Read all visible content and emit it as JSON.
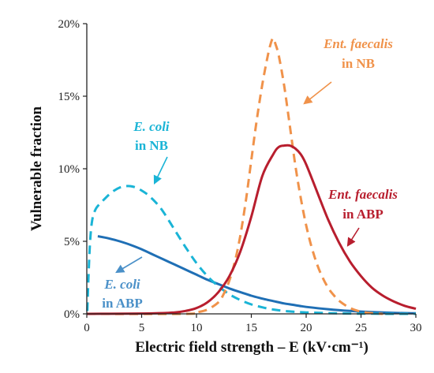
{
  "chart_data": {
    "type": "line",
    "xlabel": "Electric field strength – E (kV·cm⁻¹)",
    "ylabel": "Vulnerable fraction",
    "xlim": [
      0,
      30
    ],
    "ylim": [
      0,
      20
    ],
    "x_ticks": [
      "0",
      "5",
      "10",
      "15",
      "20",
      "25",
      "30"
    ],
    "y_ticks": [
      "0%",
      "5%",
      "10%",
      "15%",
      "20%"
    ],
    "grid": false,
    "legend": "none",
    "series": [
      {
        "key": "ecoli_abp",
        "style": "solid",
        "color": "#1f6fb5",
        "x": [
          1,
          2,
          3,
          4,
          5,
          6,
          7,
          8,
          9,
          10,
          11,
          12,
          13,
          14,
          15,
          16,
          17,
          18,
          19,
          20,
          22,
          24,
          26,
          28,
          30
        ],
        "y": [
          5.35,
          5.2,
          5.0,
          4.75,
          4.45,
          4.1,
          3.75,
          3.4,
          3.05,
          2.7,
          2.35,
          2.05,
          1.75,
          1.5,
          1.25,
          1.05,
          0.88,
          0.72,
          0.6,
          0.48,
          0.32,
          0.2,
          0.12,
          0.07,
          0.04
        ]
      },
      {
        "key": "ecoli_nb",
        "style": "dashed",
        "color": "#1ab4d6",
        "x": [
          0.05,
          0.15,
          0.3,
          0.5,
          0.8,
          1.2,
          1.6,
          2.0,
          2.5,
          3.0,
          3.5,
          4.0,
          4.5,
          5.0,
          5.5,
          6.0,
          6.5,
          7.0,
          8.0,
          9.0,
          10.0,
          11.0,
          12.0,
          13.0,
          14.0,
          15.0,
          16.0,
          17.0,
          18.0,
          19.0,
          20.0,
          22.0,
          24.0,
          26.0,
          28.0,
          30.0
        ],
        "y": [
          0.2,
          2.5,
          5.0,
          6.5,
          7.2,
          7.6,
          7.9,
          8.2,
          8.5,
          8.7,
          8.8,
          8.8,
          8.7,
          8.5,
          8.25,
          7.9,
          7.5,
          7.0,
          5.8,
          4.6,
          3.5,
          2.6,
          1.9,
          1.35,
          0.95,
          0.65,
          0.45,
          0.3,
          0.2,
          0.14,
          0.1,
          0.05,
          0.02,
          0.01,
          0.0,
          0.0
        ]
      },
      {
        "key": "ent_nb",
        "style": "dashed",
        "color": "#f0924a",
        "x": [
          0,
          9,
          10,
          11,
          12,
          12.5,
          13,
          13.5,
          14,
          14.5,
          15,
          15.5,
          16,
          16.5,
          16.8,
          17.0,
          17.2,
          17.5,
          18,
          18.5,
          19,
          19.5,
          20,
          20.5,
          21,
          21.5,
          22,
          22.5,
          23,
          24,
          25,
          26,
          27
        ],
        "y": [
          0,
          0.0,
          0.1,
          0.3,
          0.8,
          1.4,
          2.3,
          3.6,
          5.4,
          7.8,
          10.6,
          13.4,
          15.8,
          17.8,
          18.7,
          19.0,
          18.6,
          17.8,
          15.7,
          13.0,
          10.3,
          8.0,
          6.1,
          4.6,
          3.4,
          2.5,
          1.8,
          1.3,
          0.9,
          0.4,
          0.15,
          0.05,
          0.0
        ]
      },
      {
        "key": "ent_abp",
        "style": "solid",
        "color": "#b81e2e",
        "x": [
          0,
          6,
          8,
          9,
          10,
          11,
          12,
          13,
          14,
          15,
          16,
          17,
          17.5,
          18,
          18.5,
          19,
          19.5,
          20,
          21,
          22,
          23,
          24,
          25,
          26,
          27,
          28,
          29,
          30
        ],
        "y": [
          0,
          0.03,
          0.1,
          0.2,
          0.4,
          0.8,
          1.5,
          2.6,
          4.3,
          6.7,
          9.5,
          11.0,
          11.5,
          11.6,
          11.6,
          11.4,
          11.0,
          10.3,
          8.4,
          6.5,
          4.9,
          3.6,
          2.6,
          1.8,
          1.25,
          0.85,
          0.55,
          0.35
        ]
      }
    ],
    "annotations": {
      "ecoli_nb": {
        "species": "E. coli",
        "medium": "in NB",
        "color": "#1ab4d6"
      },
      "ecoli_abp": {
        "species": "E. coli",
        "medium": "in ABP",
        "color": "#4a90c8"
      },
      "ent_nb": {
        "species": "Ent. faecalis",
        "medium": "in NB",
        "color": "#f0924a"
      },
      "ent_abp": {
        "species": "Ent. faecalis",
        "medium": "in ABP",
        "color": "#b81e2e"
      }
    }
  }
}
